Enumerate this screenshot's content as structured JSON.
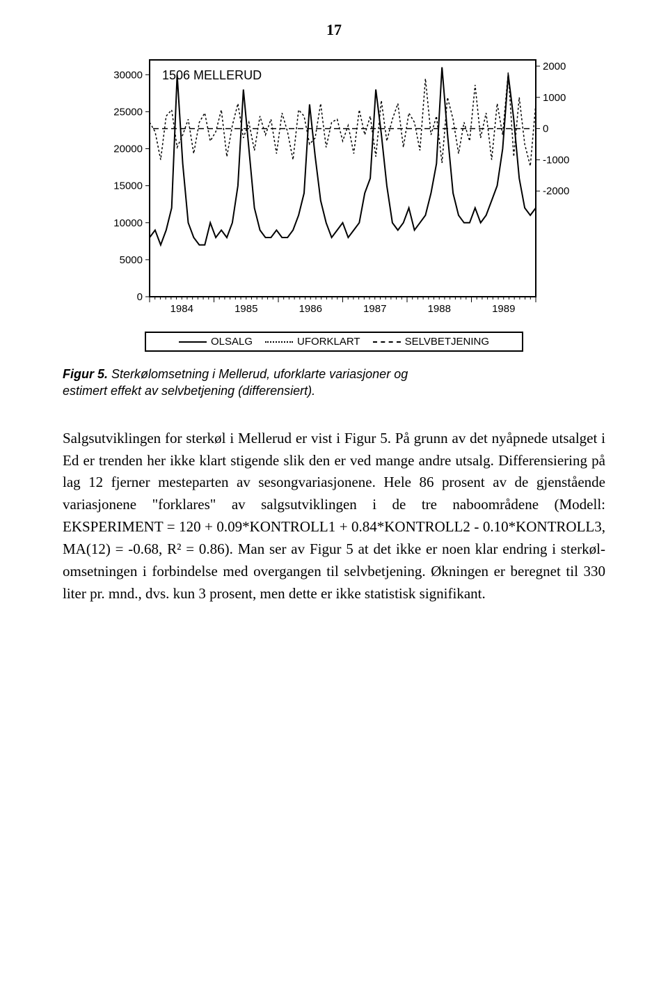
{
  "page_number": "17",
  "chart": {
    "type": "line",
    "title": "1506 MELLERUD",
    "title_fontsize": 18,
    "background_color": "#ffffff",
    "plot_border_color": "#000000",
    "plot_border_width": 2,
    "x": {
      "ticks": [
        "1984",
        "1985",
        "1986",
        "1987",
        "1988",
        "1989"
      ],
      "fontsize": 15
    },
    "left_axis": {
      "ticks": [
        "0",
        "5000",
        "10000",
        "15000",
        "20000",
        "25000",
        "30000"
      ],
      "ylim": [
        0,
        32000
      ],
      "fontsize": 15
    },
    "right_axis": {
      "ticks": [
        "-2000",
        "-1000",
        "0",
        "1000",
        "2000"
      ],
      "ylim": [
        -2200,
        2200
      ],
      "fontsize": 15
    },
    "series": [
      {
        "name": "OLSALG",
        "axis": "left",
        "stroke": "#000000",
        "stroke_width": 2,
        "dash": "none",
        "data": [
          8,
          9,
          7,
          9,
          12,
          30,
          18,
          10,
          8,
          7,
          7,
          10,
          8,
          9,
          8,
          10,
          15,
          28,
          20,
          12,
          9,
          8,
          8,
          9,
          8,
          8,
          9,
          11,
          14,
          26,
          19,
          13,
          10,
          8,
          9,
          10,
          8,
          9,
          10,
          14,
          16,
          28,
          22,
          15,
          10,
          9,
          10,
          12,
          9,
          10,
          11,
          14,
          18,
          31,
          22,
          14,
          11,
          10,
          10,
          12,
          10,
          11,
          13,
          15,
          20,
          30,
          24,
          16,
          12,
          11,
          12
        ]
      },
      {
        "name": "UFORKLART",
        "axis": "right",
        "stroke": "#000000",
        "stroke_width": 1.5,
        "dash": "3,3",
        "data": [
          200,
          -100,
          -1000,
          400,
          600,
          -600,
          -200,
          300,
          -800,
          200,
          500,
          -400,
          -100,
          600,
          -900,
          100,
          800,
          -300,
          200,
          -700,
          400,
          -200,
          300,
          -800,
          500,
          -100,
          -1000,
          600,
          400,
          -500,
          -300,
          800,
          -600,
          200,
          300,
          -400,
          100,
          -800,
          600,
          -200,
          400,
          -900,
          900,
          -400,
          300,
          800,
          -600,
          500,
          200,
          -700,
          1600,
          -200,
          400,
          -1100,
          1000,
          300,
          -800,
          200,
          -400,
          1400,
          -300,
          500,
          -1000,
          800,
          -200,
          1800,
          -900,
          1000,
          -500,
          -1200,
          800
        ]
      },
      {
        "name": "SELVBETJENING",
        "axis": "right",
        "stroke": "#000000",
        "stroke_width": 1.5,
        "dash": "8,5",
        "zero_line": true
      }
    ]
  },
  "legend": {
    "items": [
      {
        "label": "OLSALG",
        "dash": "solid"
      },
      {
        "label": "UFORKLART",
        "dash": "dotted"
      },
      {
        "label": "SELVBETJENING",
        "dash": "dashed"
      }
    ]
  },
  "caption": {
    "lead": "Figur 5.",
    "text_line1": "Sterkølomsetning i Mellerud, uforklarte variasjoner og",
    "text_line2": "estimert effekt av selvbetjening (differensiert)."
  },
  "body": "Salgsutviklingen for sterkøl i Mellerud er vist i Figur 5. På grunn av det nyåpnede utsalget i Ed er trenden her ikke klart stigende slik den er ved mange andre utsalg. Differensiering på lag 12 fjerner mesteparten av sesongvariasjonene. Hele 86 prosent av de gjenstående variasjonene \"forklares\" av salgsutviklingen i de tre naboområdene (Modell: EKSPERIMENT = 120 + 0.09*KONTROLL1 + 0.84*KONTROLL2 - 0.10*KONTROLL3, MA(12) = -0.68, R² = 0.86). Man ser av Figur 5 at det ikke er noen klar endring i sterkøl-omsetningen i forbindelse med overgangen til selvbetjening. Økningen er beregnet til 330 liter pr. mnd., dvs. kun 3 prosent, men dette er ikke statistisk signifikant."
}
